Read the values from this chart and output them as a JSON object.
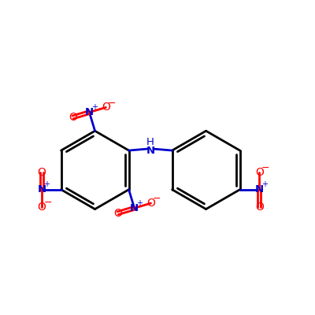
{
  "bg_color": "#ffffff",
  "bond_color": "#000000",
  "N_color": "#0000cd",
  "O_color": "#ff0000",
  "bond_width": 2.0,
  "figsize": [
    4.0,
    4.0
  ],
  "dpi": 100,
  "lc": [
    3.0,
    5.1
  ],
  "lr": 1.25,
  "rc": [
    6.55,
    5.1
  ],
  "rr": 1.25,
  "xlim": [
    0,
    10
  ],
  "ylim": [
    0.5,
    10.5
  ]
}
